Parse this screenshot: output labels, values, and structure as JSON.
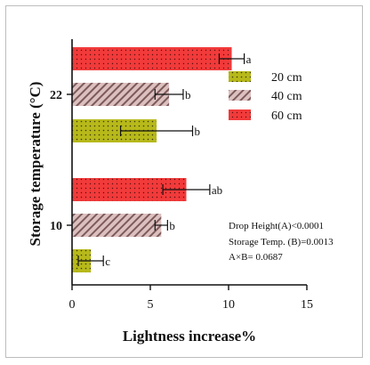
{
  "chart_data": {
    "type": "bar",
    "orientation": "horizontal",
    "xlabel": "Lightness increase%",
    "ylabel": "Storage temperature (°C)",
    "xlim": [
      0,
      15
    ],
    "xticks": [
      "0",
      "5",
      "10",
      "15"
    ],
    "categories": [
      "10",
      "22"
    ],
    "series": [
      {
        "name": "20 cm",
        "color": "#b7b91a",
        "pattern": "dots-on-olive",
        "values": [
          1.2,
          5.4
        ],
        "errors": [
          0.8,
          2.3
        ],
        "letters": [
          "c",
          "b"
        ]
      },
      {
        "name": "40 cm",
        "color": "#d7b4b4",
        "pattern": "diagonal-hatch",
        "values": [
          5.7,
          6.2
        ],
        "errors": [
          0.4,
          0.9
        ],
        "letters": [
          "b",
          "b"
        ]
      },
      {
        "name": "60 cm",
        "color": "#f23a3a",
        "pattern": "dots-on-red",
        "values": [
          7.3,
          10.2
        ],
        "errors": [
          1.5,
          0.8
        ],
        "letters": [
          "ab",
          "a"
        ]
      }
    ],
    "legend_position": "right",
    "annotations": [
      "Drop Height(A)<0.0001",
      "Storage Temp. (B)=0.0013",
      "A×B= 0.0687"
    ],
    "grid": false
  }
}
